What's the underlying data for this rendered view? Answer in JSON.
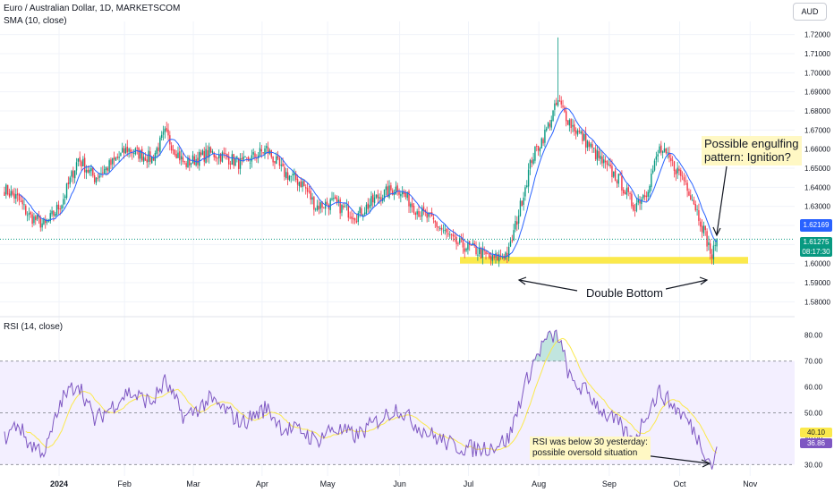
{
  "header": {
    "symbol_line": "Euro / Australian Dollar, 1D, MARKETSCOM",
    "sma_label": "SMA (10, close)",
    "rsi_label": "RSI (14, close)",
    "currency_button": "AUD"
  },
  "price_tags": {
    "sma_value": "1.62169",
    "last_price": "1.61275",
    "countdown": "08:17:30",
    "rsi_ma_value": "40.10",
    "rsi_value": "36.86"
  },
  "annotations": {
    "engulfing_note": [
      "Possible engulfing",
      "pattern: Ignition?"
    ],
    "double_bottom": "Double Bottom",
    "rsi_note": [
      "RSI was below 30 yesterday:",
      "possible oversold situation"
    ]
  },
  "colors": {
    "up": "#089981",
    "down": "#f23645",
    "sma": "#2962ff",
    "rsi": "#7e57c2",
    "rsi_ma": "#fbe94c",
    "band_fill": "#f3efff",
    "support_zone": "#fbe94c"
  },
  "chart_data": [
    {
      "type": "candlestick",
      "title": "Euro / Australian Dollar, 1D, MARKETSCOM",
      "ylim": [
        1.575,
        1.725
      ],
      "y_ticks": [
        "1.72000",
        "1.71000",
        "1.70000",
        "1.69000",
        "1.68000",
        "1.67000",
        "1.66000",
        "1.65000",
        "1.64000",
        "1.63000",
        "1.62000",
        "1.61000",
        "1.60000",
        "1.59000",
        "1.58000"
      ],
      "x_ticks": [
        "2024",
        "Feb",
        "Mar",
        "Apr",
        "May",
        "Jun",
        "Jul",
        "Aug",
        "Sep",
        "Oct",
        "Nov"
      ],
      "support_zone": [
        1.6,
        1.6035
      ],
      "close_anchors": [
        [
          0,
          1.639
        ],
        [
          8,
          1.634
        ],
        [
          15,
          1.625
        ],
        [
          25,
          1.62
        ],
        [
          35,
          1.632
        ],
        [
          45,
          1.655
        ],
        [
          55,
          1.645
        ],
        [
          65,
          1.652
        ],
        [
          75,
          1.66
        ],
        [
          90,
          1.655
        ],
        [
          98,
          1.668
        ],
        [
          110,
          1.652
        ],
        [
          125,
          1.658
        ],
        [
          135,
          1.656
        ],
        [
          145,
          1.652
        ],
        [
          160,
          1.66
        ],
        [
          170,
          1.648
        ],
        [
          182,
          1.642
        ],
        [
          190,
          1.63
        ],
        [
          200,
          1.632
        ],
        [
          215,
          1.625
        ],
        [
          228,
          1.635
        ],
        [
          240,
          1.64
        ],
        [
          252,
          1.628
        ],
        [
          262,
          1.622
        ],
        [
          275,
          1.611
        ],
        [
          288,
          1.607
        ],
        [
          298,
          1.602
        ],
        [
          308,
          1.606
        ],
        [
          315,
          1.63
        ],
        [
          322,
          1.655
        ],
        [
          330,
          1.668
        ],
        [
          338,
          1.685
        ],
        [
          346,
          1.673
        ],
        [
          356,
          1.663
        ],
        [
          366,
          1.652
        ],
        [
          376,
          1.643
        ],
        [
          384,
          1.63
        ],
        [
          392,
          1.638
        ],
        [
          400,
          1.66
        ],
        [
          408,
          1.652
        ],
        [
          416,
          1.643
        ],
        [
          422,
          1.63
        ],
        [
          428,
          1.615
        ],
        [
          432,
          1.6035
        ],
        [
          435,
          1.6128
        ]
      ],
      "sma_period": 10
    },
    {
      "type": "line",
      "title": "RSI (14, close)",
      "ylim": [
        27,
        83
      ],
      "y_ticks": [
        "80.00",
        "70.00",
        "60.00",
        "50.00",
        "40.00",
        "30.00"
      ],
      "levels": [
        70,
        50,
        30
      ],
      "rsi_anchors": [
        [
          0,
          40
        ],
        [
          8,
          46
        ],
        [
          15,
          38
        ],
        [
          25,
          35
        ],
        [
          35,
          55
        ],
        [
          45,
          62
        ],
        [
          55,
          47
        ],
        [
          65,
          52
        ],
        [
          75,
          58
        ],
        [
          90,
          54
        ],
        [
          98,
          62
        ],
        [
          110,
          48
        ],
        [
          125,
          55
        ],
        [
          135,
          51
        ],
        [
          145,
          46
        ],
        [
          160,
          52
        ],
        [
          170,
          44
        ],
        [
          182,
          43
        ],
        [
          190,
          39
        ],
        [
          200,
          44
        ],
        [
          215,
          41
        ],
        [
          228,
          47
        ],
        [
          240,
          52
        ],
        [
          252,
          45
        ],
        [
          262,
          41
        ],
        [
          275,
          37
        ],
        [
          288,
          36
        ],
        [
          298,
          37
        ],
        [
          308,
          40
        ],
        [
          315,
          55
        ],
        [
          322,
          68
        ],
        [
          330,
          78
        ],
        [
          338,
          80
        ],
        [
          346,
          62
        ],
        [
          356,
          58
        ],
        [
          366,
          50
        ],
        [
          376,
          45
        ],
        [
          384,
          38
        ],
        [
          392,
          50
        ],
        [
          400,
          58
        ],
        [
          408,
          53
        ],
        [
          416,
          48
        ],
        [
          422,
          42
        ],
        [
          428,
          35
        ],
        [
          432,
          29.5
        ],
        [
          435,
          36.9
        ]
      ],
      "ma_period": 14
    }
  ]
}
